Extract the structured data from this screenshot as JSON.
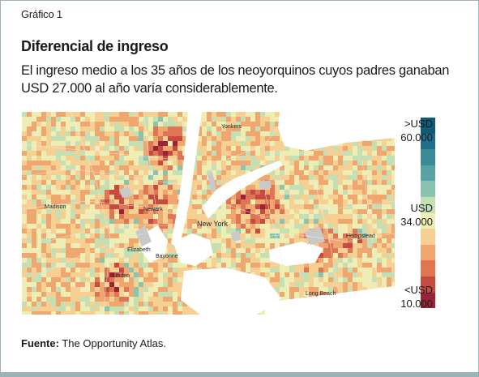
{
  "figure_label": "Gráfico 1",
  "title": "Diferencial de ingreso",
  "subtitle": "El ingreso medio a los 35 años de los neoyorquinos cuyos padres ganaban USD 27.000 al año varía considerablemente.",
  "legend": {
    "top": [
      ">USD",
      "60.000"
    ],
    "mid": [
      "USD",
      "34.000"
    ],
    "bottom": [
      "<USD",
      "10.000"
    ],
    "colors": [
      "#0f5a76",
      "#1f6e8a",
      "#3b8a99",
      "#5aa2a3",
      "#8cc3ae",
      "#c3dfb3",
      "#eeeeb4",
      "#f6cf93",
      "#f0a66f",
      "#df7553",
      "#c54b41",
      "#99243a"
    ]
  },
  "map_labels": [
    "New York",
    "Newark",
    "Elizabeth",
    "Bayonne",
    "Linden",
    "Yonkers",
    "Hempstead",
    "Long Beach",
    "Madison"
  ],
  "source_label": "Fuente:",
  "source_text": "The Opportunity Atlas."
}
